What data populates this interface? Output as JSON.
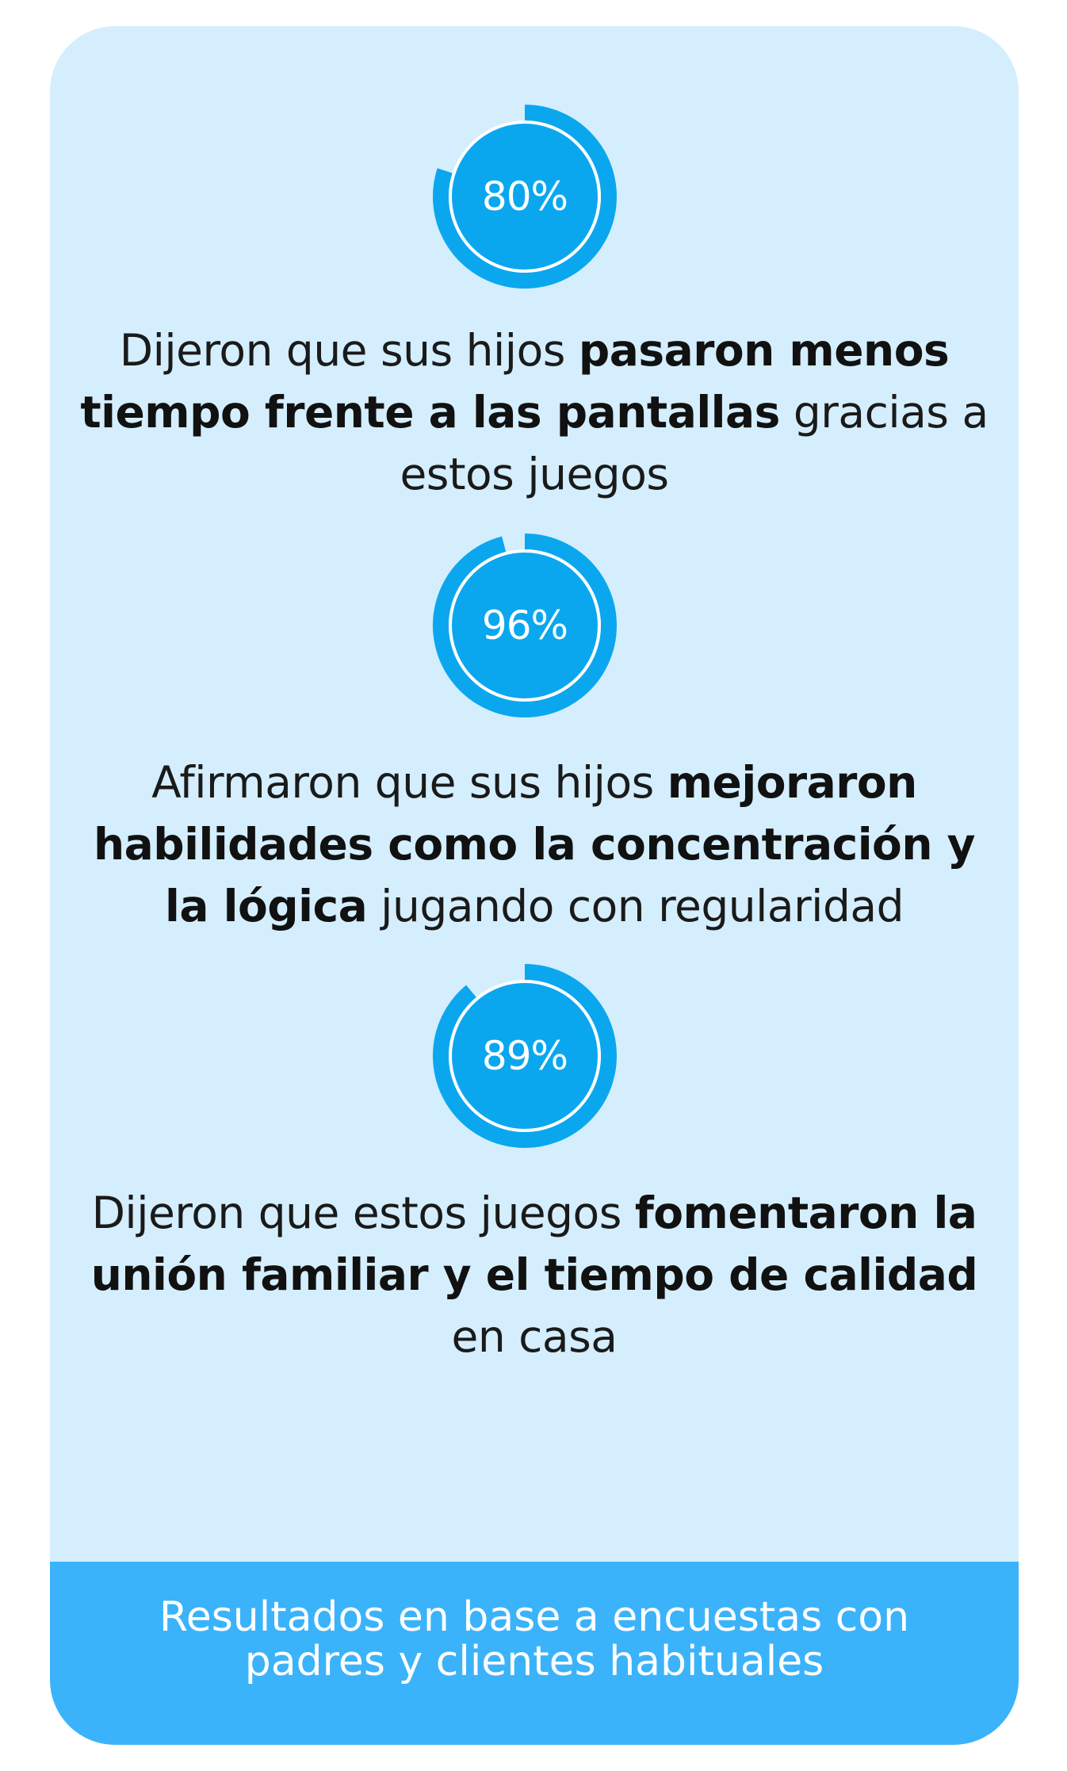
{
  "colors": {
    "card_background": "#d4eefd",
    "ring_fill": "#0aa7ef",
    "ring_inner_stroke": "#ffffff",
    "footer_background": "#3bb3fb",
    "text": "#1a1a1a"
  },
  "stats": [
    {
      "percent_label": "80%",
      "progress": 0.8,
      "text_before": "Dijeron que sus hijos ",
      "text_bold": "pasaron menos tiempo frente a las pantallas",
      "text_after": " gracias a estos juegos"
    },
    {
      "percent_label": "96%",
      "progress": 0.96,
      "text_before": "Afirmaron que sus hijos ",
      "text_bold": "mejoraron habilidades como la concentración y la lógica",
      "text_after": " jugando con regularidad"
    },
    {
      "percent_label": "89%",
      "progress": 0.89,
      "text_before": "Dijeron que estos juegos ",
      "text_bold": "fomentaron la unión familiar y el tiempo de calidad",
      "text_after": " en casa"
    }
  ],
  "footer": {
    "text": "Resultados en base a encuestas con padres y clientes habituales"
  }
}
